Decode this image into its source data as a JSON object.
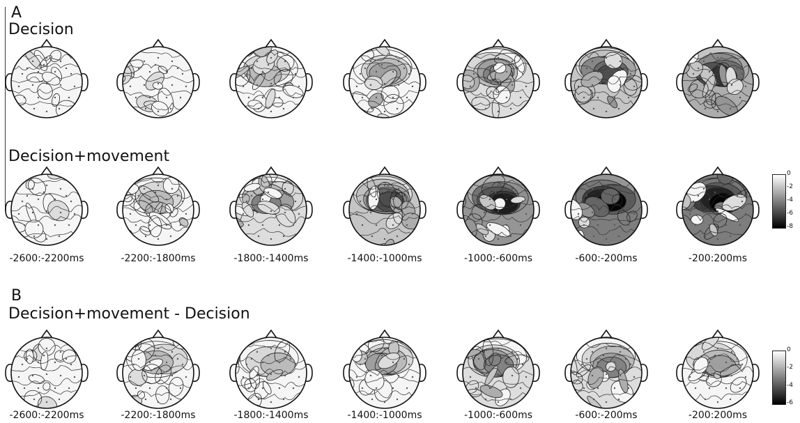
{
  "panel_a": {
    "letter": "A",
    "rows": [
      {
        "title": "Decision",
        "levels": [
          1,
          2,
          3,
          4,
          5,
          6,
          7
        ]
      },
      {
        "title": "Decision+movement",
        "levels": [
          2,
          3,
          5,
          6,
          8,
          9,
          9
        ]
      }
    ],
    "time_labels": [
      "-2600:-2200ms",
      "-2200:-1800ms",
      "-1800:-1400ms",
      "-1400:-1000ms",
      "-1000:-600ms",
      "-600:-200ms",
      "-200:200ms"
    ],
    "colorbar": {
      "ticks": [
        "0",
        "-2",
        "-4",
        "-6",
        "-8"
      ]
    }
  },
  "panel_b": {
    "letter": "B",
    "rows": [
      {
        "title": "Decision+movement - Decision",
        "levels": [
          1,
          3,
          3,
          4,
          5,
          5,
          4
        ]
      }
    ],
    "time_labels": [
      "-2600:-2200ms",
      "-2200:-1800ms",
      "-1800:-1400ms",
      "-1400:-1000ms",
      "-1000:-600ms",
      "-600:-200ms",
      "-200:200ms"
    ],
    "colorbar": {
      "ticks": [
        "0",
        "-2",
        "-4",
        "-6"
      ]
    }
  }
}
